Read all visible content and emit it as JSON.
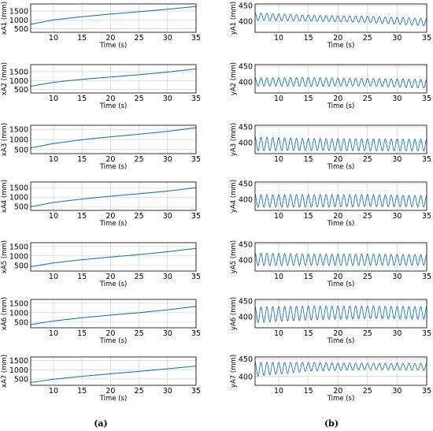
{
  "panel_labels": {
    "left": "(a)",
    "right": "(b)"
  },
  "chart_data": [
    {
      "type": "line",
      "panel": "a",
      "title": "",
      "xlabel": "Time (s)",
      "ylabel": "xA1 (mm)",
      "xlim": [
        6,
        35
      ],
      "ylim": [
        300,
        1900
      ],
      "xticks": [
        10,
        15,
        20,
        25,
        30,
        35
      ],
      "yticks": [
        500,
        1000,
        1500
      ],
      "grid": true,
      "series": [
        {
          "color": "#1f77b4",
          "x": [
            6,
            10,
            15,
            20,
            25,
            30,
            35
          ],
          "y": [
            750,
            1000,
            1180,
            1330,
            1460,
            1600,
            1760
          ]
        }
      ]
    },
    {
      "type": "line",
      "panel": "a",
      "title": "",
      "xlabel": "Time (s)",
      "ylabel": "xA2 (mm)",
      "xlim": [
        6,
        35
      ],
      "ylim": [
        300,
        1900
      ],
      "xticks": [
        10,
        15,
        20,
        25,
        30,
        35
      ],
      "yticks": [
        500,
        1000,
        1500
      ],
      "grid": true,
      "series": [
        {
          "color": "#1f77b4",
          "x": [
            6,
            10,
            15,
            20,
            25,
            30,
            35
          ],
          "y": [
            680,
            900,
            1070,
            1200,
            1330,
            1480,
            1660
          ]
        }
      ]
    },
    {
      "type": "line",
      "panel": "a",
      "title": "",
      "xlabel": "Time (s)",
      "ylabel": "xA3 (mm)",
      "xlim": [
        6,
        35
      ],
      "ylim": [
        300,
        1700
      ],
      "xticks": [
        10,
        15,
        20,
        25,
        30,
        35
      ],
      "yticks": [
        500,
        1000,
        1500
      ],
      "grid": true,
      "series": [
        {
          "color": "#1f77b4",
          "x": [
            6,
            10,
            15,
            20,
            25,
            30,
            35
          ],
          "y": [
            580,
            800,
            990,
            1130,
            1260,
            1400,
            1580
          ]
        }
      ]
    },
    {
      "type": "line",
      "panel": "a",
      "title": "",
      "xlabel": "Time (s)",
      "ylabel": "xA4 (mm)",
      "xlim": [
        6,
        35
      ],
      "ylim": [
        300,
        1800
      ],
      "xticks": [
        10,
        15,
        20,
        25,
        30,
        35
      ],
      "yticks": [
        500,
        1000,
        1500
      ],
      "grid": true,
      "series": [
        {
          "color": "#1f77b4",
          "x": [
            6,
            10,
            15,
            20,
            25,
            30,
            35
          ],
          "y": [
            490,
            720,
            900,
            1050,
            1180,
            1320,
            1500
          ]
        }
      ]
    },
    {
      "type": "line",
      "panel": "a",
      "title": "",
      "xlabel": "Time (s)",
      "ylabel": "xA5 (mm)",
      "xlim": [
        6,
        35
      ],
      "ylim": [
        200,
        1700
      ],
      "xticks": [
        10,
        15,
        20,
        25,
        30,
        35
      ],
      "yticks": [
        500,
        1000,
        1500
      ],
      "grid": true,
      "series": [
        {
          "color": "#1f77b4",
          "x": [
            6,
            10,
            15,
            20,
            25,
            30,
            35
          ],
          "y": [
            430,
            630,
            800,
            940,
            1070,
            1220,
            1400
          ]
        }
      ]
    },
    {
      "type": "line",
      "panel": "a",
      "title": "",
      "xlabel": "Time (s)",
      "ylabel": "xA6 (mm)",
      "xlim": [
        6,
        35
      ],
      "ylim": [
        200,
        1700
      ],
      "xticks": [
        10,
        15,
        20,
        25,
        30,
        35
      ],
      "yticks": [
        500,
        1000,
        1500
      ],
      "grid": true,
      "series": [
        {
          "color": "#1f77b4",
          "x": [
            6,
            10,
            15,
            20,
            25,
            30,
            35
          ],
          "y": [
            370,
            560,
            730,
            870,
            1000,
            1150,
            1330
          ]
        }
      ]
    },
    {
      "type": "line",
      "panel": "a",
      "title": "",
      "xlabel": "Time (s)",
      "ylabel": "xA7 (mm)",
      "xlim": [
        6,
        35
      ],
      "ylim": [
        150,
        1700
      ],
      "xticks": [
        10,
        15,
        20,
        25,
        30,
        35
      ],
      "yticks": [
        500,
        1000,
        1500
      ],
      "grid": true,
      "series": [
        {
          "color": "#1f77b4",
          "x": [
            6,
            10,
            15,
            20,
            25,
            30,
            35
          ],
          "y": [
            300,
            480,
            640,
            780,
            910,
            1050,
            1200
          ]
        }
      ]
    },
    {
      "type": "line",
      "panel": "b",
      "title": "",
      "xlabel": "Time (s)",
      "ylabel": "yA1 (mm)",
      "xlim": [
        6,
        35
      ],
      "ylim": [
        365,
        455
      ],
      "xticks": [
        10,
        15,
        20,
        25,
        30,
        35
      ],
      "yticks": [
        400,
        450
      ],
      "grid": true,
      "series": [
        {
          "color": "#1f77b4",
          "kind": "oscillation",
          "period_s": 1.0,
          "x": [
            6,
            15,
            25,
            35
          ],
          "center": [
            415,
            410,
            406,
            397
          ],
          "amplitude": [
            12,
            9,
            10,
            12
          ]
        }
      ]
    },
    {
      "type": "line",
      "panel": "b",
      "title": "",
      "xlabel": "Time (s)",
      "ylabel": "yA2 (mm)",
      "xlim": [
        6,
        35
      ],
      "ylim": [
        365,
        455
      ],
      "xticks": [
        10,
        15,
        20,
        25,
        30,
        35
      ],
      "yticks": [
        400,
        450
      ],
      "grid": true,
      "series": [
        {
          "color": "#1f77b4",
          "kind": "oscillation",
          "period_s": 1.0,
          "x": [
            6,
            15,
            25,
            35
          ],
          "center": [
            400,
            400,
            399,
            394
          ],
          "amplitude": [
            13,
            14,
            12,
            14
          ]
        }
      ]
    },
    {
      "type": "line",
      "panel": "b",
      "title": "",
      "xlabel": "Time (s)",
      "ylabel": "yA3 (mm)",
      "xlim": [
        6,
        35
      ],
      "ylim": [
        365,
        455
      ],
      "xticks": [
        10,
        15,
        20,
        25,
        30,
        35
      ],
      "yticks": [
        400,
        450
      ],
      "grid": true,
      "series": [
        {
          "color": "#1f77b4",
          "kind": "oscillation",
          "period_s": 1.0,
          "x": [
            6,
            15,
            25,
            35
          ],
          "center": [
            396,
            394,
            393,
            392
          ],
          "amplitude": [
            22,
            19,
            19,
            19
          ]
        }
      ]
    },
    {
      "type": "line",
      "panel": "b",
      "title": "",
      "xlabel": "Time (s)",
      "ylabel": "yA4 (mm)",
      "xlim": [
        6,
        35
      ],
      "ylim": [
        365,
        455
      ],
      "xticks": [
        10,
        15,
        20,
        25,
        30,
        35
      ],
      "yticks": [
        400,
        450
      ],
      "grid": true,
      "series": [
        {
          "color": "#1f77b4",
          "kind": "oscillation",
          "period_s": 1.0,
          "x": [
            6,
            15,
            25,
            35
          ],
          "center": [
            395,
            395,
            396,
            394
          ],
          "amplitude": [
            20,
            20,
            19,
            18
          ]
        }
      ]
    },
    {
      "type": "line",
      "panel": "b",
      "title": "",
      "xlabel": "Time (s)",
      "ylabel": "yA5 (mm)",
      "xlim": [
        6,
        35
      ],
      "ylim": [
        365,
        455
      ],
      "xticks": [
        10,
        15,
        20,
        25,
        30,
        35
      ],
      "yticks": [
        400,
        450
      ],
      "grid": true,
      "series": [
        {
          "color": "#1f77b4",
          "kind": "oscillation",
          "period_s": 1.0,
          "x": [
            6,
            15,
            25,
            35
          ],
          "center": [
            402,
            401,
            401,
            400
          ],
          "amplitude": [
            20,
            18,
            18,
            17
          ]
        }
      ]
    },
    {
      "type": "line",
      "panel": "b",
      "title": "",
      "xlabel": "Time (s)",
      "ylabel": "yA6 (mm)",
      "xlim": [
        6,
        35
      ],
      "ylim": [
        365,
        455
      ],
      "xticks": [
        10,
        15,
        20,
        25,
        30,
        35
      ],
      "yticks": [
        400,
        450
      ],
      "grid": true,
      "series": [
        {
          "color": "#1f77b4",
          "kind": "oscillation",
          "period_s": 1.0,
          "x": [
            6,
            15,
            25,
            35
          ],
          "center": [
            406,
            412,
            414,
            412
          ],
          "amplitude": [
            25,
            22,
            20,
            20
          ]
        }
      ]
    },
    {
      "type": "line",
      "panel": "b",
      "title": "",
      "xlabel": "Time (s)",
      "ylabel": "yA7 (mm)",
      "xlim": [
        6,
        35
      ],
      "ylim": [
        375,
        455
      ],
      "xticks": [
        10,
        15,
        20,
        25,
        30,
        35
      ],
      "yticks": [
        400,
        450
      ],
      "grid": true,
      "series": [
        {
          "color": "#1f77b4",
          "kind": "oscillation",
          "period_s": 1.0,
          "x": [
            6,
            15,
            25,
            35
          ],
          "center": [
            420,
            427,
            428,
            427
          ],
          "amplitude": [
            20,
            12,
            9,
            10
          ]
        }
      ]
    }
  ]
}
